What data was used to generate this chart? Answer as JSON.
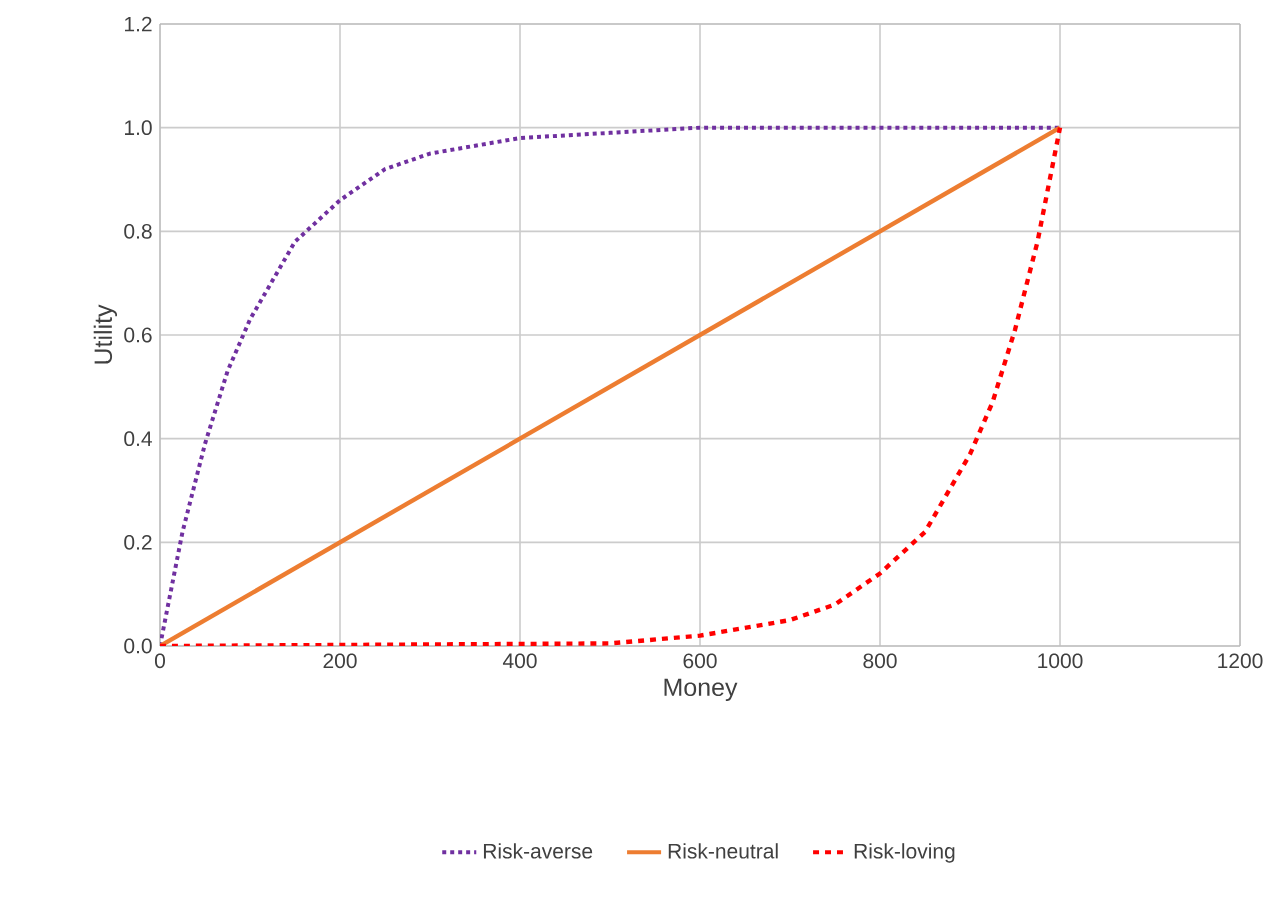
{
  "chart_data": {
    "type": "line",
    "xlabel": "Money",
    "ylabel": "Utility",
    "xlim": [
      0,
      1200
    ],
    "xticks": [
      0,
      200,
      400,
      600,
      800,
      1000,
      1200
    ],
    "ylim": [
      0,
      1.2
    ],
    "yticks": [
      {
        "value": 0,
        "label": "0.0"
      },
      {
        "value": 0.2,
        "label": "0.2"
      },
      {
        "value": 0.4,
        "label": "0.4"
      },
      {
        "value": 0.6,
        "label": "0.6"
      },
      {
        "value": 0.8,
        "label": "0.8"
      },
      {
        "value": 1.0,
        "label": "1.0"
      },
      {
        "value": 1.2,
        "label": "1.2"
      }
    ],
    "grid": true,
    "legend": "bottom",
    "series": [
      {
        "name": "Risk-averse",
        "color": "#7030a0",
        "line_style": "dotted",
        "x": [
          0,
          25,
          50,
          75,
          100,
          150,
          200,
          250,
          300,
          400,
          500,
          600,
          800,
          1000
        ],
        "values": [
          0,
          0.22,
          0.39,
          0.53,
          0.63,
          0.78,
          0.86,
          0.92,
          0.95,
          0.98,
          0.99,
          1.0,
          1.0,
          1.0
        ]
      },
      {
        "name": "Risk-neutral",
        "color": "#ed7d31",
        "line_style": "solid",
        "x": [
          0,
          1000
        ],
        "values": [
          0,
          1
        ]
      },
      {
        "name": "Risk-loving",
        "color": "#ff0000",
        "line_style": "dashed",
        "x": [
          0,
          500,
          600,
          700,
          750,
          800,
          850,
          900,
          925,
          950,
          975,
          1000
        ],
        "values": [
          0,
          0.005,
          0.02,
          0.05,
          0.08,
          0.14,
          0.22,
          0.37,
          0.47,
          0.61,
          0.78,
          1.0
        ]
      }
    ]
  }
}
